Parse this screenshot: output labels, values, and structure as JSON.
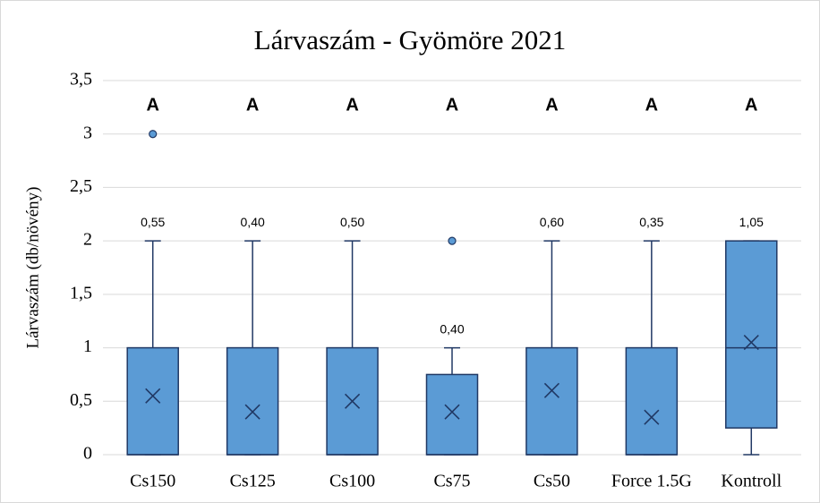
{
  "chart_data": {
    "type": "box",
    "title": "Lárvaszám - Gyömöre 2021",
    "y_label": "Lárvaszám (db/növény)",
    "categories": [
      "Cs150",
      "Cs125",
      "Cs100",
      "Cs75",
      "Cs50",
      "Force 1.5G",
      "Kontroll"
    ],
    "boxes": [
      {
        "min": 0,
        "q1": 0,
        "median": 0,
        "q3": 1,
        "max": 2,
        "mean": 0.55,
        "mean_label": "0,55",
        "outliers": [
          3
        ],
        "group": "A"
      },
      {
        "min": 0,
        "q1": 0,
        "median": 0,
        "q3": 1,
        "max": 2,
        "mean": 0.4,
        "mean_label": "0,40",
        "outliers": [],
        "group": "A"
      },
      {
        "min": 0,
        "q1": 0,
        "median": 0,
        "q3": 1,
        "max": 2,
        "mean": 0.5,
        "mean_label": "0,50",
        "outliers": [],
        "group": "A"
      },
      {
        "min": 0,
        "q1": 0,
        "median": 0,
        "q3": 0.75,
        "max": 1,
        "mean": 0.4,
        "mean_label": "0,40",
        "outliers": [
          2
        ],
        "group": "A"
      },
      {
        "min": 0,
        "q1": 0,
        "median": 0,
        "q3": 1,
        "max": 2,
        "mean": 0.6,
        "mean_label": "0,60",
        "outliers": [],
        "group": "A"
      },
      {
        "min": 0,
        "q1": 0,
        "median": 0,
        "q3": 1,
        "max": 2,
        "mean": 0.35,
        "mean_label": "0,35",
        "outliers": [],
        "group": "A"
      },
      {
        "min": 0,
        "q1": 0.25,
        "median": 1,
        "q3": 2,
        "max": 2,
        "mean": 1.05,
        "mean_label": "1,05",
        "outliers": [],
        "group": "A"
      }
    ],
    "color": "#5b9bd5",
    "ylim": [
      0,
      3.5
    ],
    "yticks": [
      0,
      {
        "value": 0.5,
        "label": "0,5"
      },
      1,
      {
        "value": 1.5,
        "label": "1,5"
      },
      2,
      {
        "value": 2.5,
        "label": "2,5"
      },
      3,
      {
        "value": 3.5,
        "label": "3,5"
      }
    ],
    "grid": true
  }
}
